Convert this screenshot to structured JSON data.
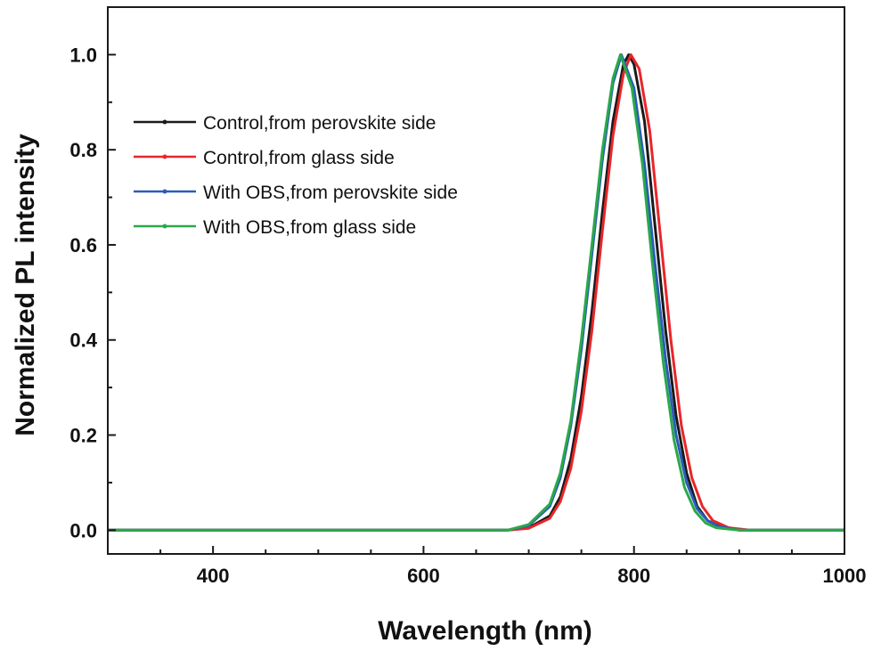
{
  "chart_data": {
    "type": "line",
    "title": "",
    "xlabel": "Wavelength (nm)",
    "ylabel": "Normalized PL intensity",
    "xlim": [
      300,
      1000
    ],
    "ylim": [
      -0.05,
      1.1
    ],
    "x_ticks": [
      400,
      600,
      800,
      1000
    ],
    "y_ticks": [
      0.0,
      0.2,
      0.4,
      0.6,
      0.8,
      1.0
    ],
    "x_tick_labels": [
      "400",
      "600",
      "800",
      "1000"
    ],
    "y_tick_labels": [
      "0.0",
      "0.2",
      "0.4",
      "0.6",
      "0.8",
      "1.0"
    ],
    "grid": false,
    "legend_position": "upper-left",
    "series": [
      {
        "name": "Control,from perovskite side",
        "color": "#1a1a1a",
        "x": [
          300,
          680,
          700,
          720,
          730,
          740,
          750,
          760,
          770,
          780,
          790,
          795,
          800,
          810,
          820,
          830,
          840,
          850,
          860,
          870,
          880,
          900,
          1000
        ],
        "y": [
          0,
          0,
          0.005,
          0.03,
          0.07,
          0.15,
          0.28,
          0.46,
          0.67,
          0.86,
          0.98,
          1.0,
          0.98,
          0.86,
          0.64,
          0.42,
          0.24,
          0.12,
          0.05,
          0.02,
          0.01,
          0,
          0
        ]
      },
      {
        "name": "Control,from glass side",
        "color": "#e8262a",
        "x": [
          300,
          680,
          700,
          720,
          730,
          740,
          750,
          760,
          770,
          780,
          790,
          797,
          805,
          815,
          825,
          835,
          845,
          855,
          865,
          875,
          890,
          910,
          1000
        ],
        "y": [
          0,
          0,
          0.004,
          0.025,
          0.06,
          0.13,
          0.25,
          0.42,
          0.63,
          0.83,
          0.96,
          1.0,
          0.97,
          0.84,
          0.62,
          0.4,
          0.22,
          0.11,
          0.05,
          0.02,
          0.005,
          0,
          0
        ]
      },
      {
        "name": "With OBS,from perovskite side",
        "color": "#2a5cb8",
        "x": [
          300,
          680,
          700,
          720,
          730,
          740,
          750,
          760,
          770,
          780,
          788,
          800,
          810,
          820,
          830,
          840,
          850,
          860,
          870,
          880,
          900,
          1000
        ],
        "y": [
          0,
          0,
          0.01,
          0.05,
          0.11,
          0.22,
          0.38,
          0.58,
          0.78,
          0.94,
          1.0,
          0.93,
          0.77,
          0.56,
          0.36,
          0.2,
          0.1,
          0.045,
          0.02,
          0.008,
          0,
          0
        ]
      },
      {
        "name": "With OBS,from glass side",
        "color": "#2aa84a",
        "x": [
          300,
          680,
          700,
          720,
          730,
          740,
          750,
          760,
          770,
          780,
          787,
          798,
          808,
          818,
          828,
          838,
          848,
          858,
          868,
          878,
          900,
          1000
        ],
        "y": [
          0,
          0,
          0.012,
          0.055,
          0.12,
          0.23,
          0.4,
          0.6,
          0.8,
          0.95,
          1.0,
          0.93,
          0.77,
          0.55,
          0.35,
          0.19,
          0.09,
          0.04,
          0.015,
          0.005,
          0,
          0
        ]
      }
    ]
  }
}
